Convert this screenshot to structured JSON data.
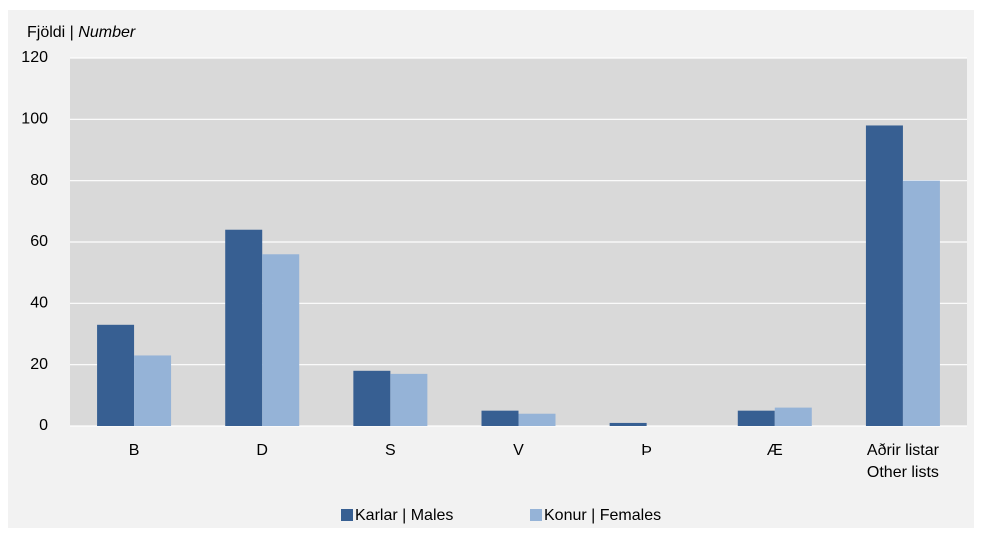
{
  "chart_data": {
    "type": "bar",
    "ylabel_parts": [
      "Fjöldi | ",
      "Number"
    ],
    "categories": [
      "B",
      "D",
      "S",
      "V",
      "Þ",
      "Æ",
      "Aðrir listar\nOther lists"
    ],
    "series": [
      {
        "name": "Karlar | Males",
        "color": "#375f92",
        "values": [
          33,
          64,
          18,
          5,
          1,
          5,
          98
        ]
      },
      {
        "name": "Konur | Females",
        "color": "#95b3d7",
        "values": [
          23,
          56,
          17,
          4,
          0,
          6,
          80
        ]
      }
    ],
    "ylim": [
      0,
      120
    ],
    "yticks": [
      0,
      20,
      40,
      60,
      80,
      100,
      120
    ],
    "grid": true,
    "legend": "bottom"
  }
}
